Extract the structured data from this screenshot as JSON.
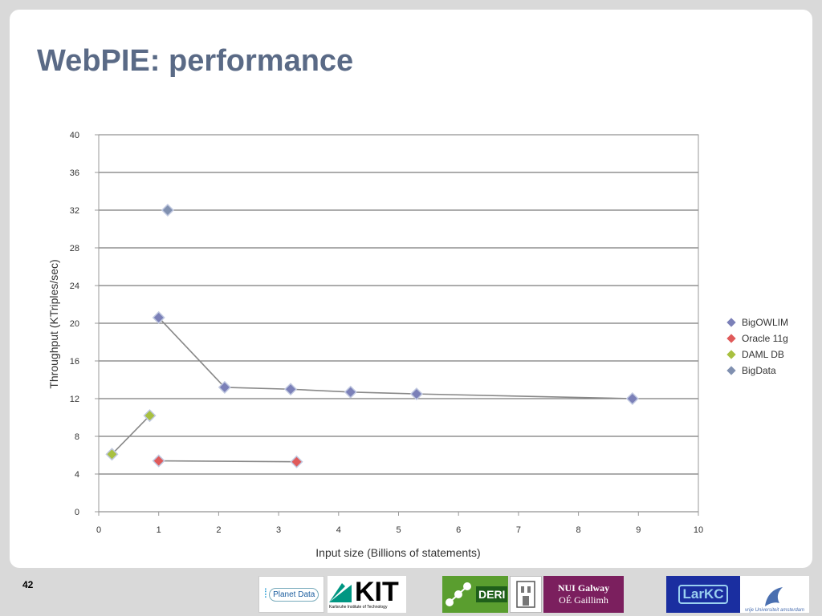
{
  "slide": {
    "title": "WebPIE: performance",
    "page_number": "42"
  },
  "chart_data": {
    "type": "scatter",
    "title": "",
    "xlabel": "Input size (Billions of statements)",
    "ylabel": "Throughput (KTriples/sec)",
    "xlim": [
      0,
      10
    ],
    "ylim": [
      0,
      40
    ],
    "xticks": [
      "0",
      "1",
      "2",
      "3",
      "4",
      "5",
      "6",
      "7",
      "8",
      "9",
      "10"
    ],
    "yticks": [
      "0",
      "4",
      "8",
      "12",
      "16",
      "20",
      "24",
      "28",
      "32",
      "36",
      "40"
    ],
    "grid": "horizontal",
    "legend_position": "right",
    "series": [
      {
        "name": "BigOWLIM",
        "color": "#7b80b8",
        "connected": true,
        "x": [
          1.0,
          2.1,
          3.2,
          4.2,
          5.3,
          8.9
        ],
        "y": [
          20.6,
          13.2,
          13.0,
          12.7,
          12.5,
          12.0
        ]
      },
      {
        "name": "Oracle 11g",
        "color": "#e05a5a",
        "connected": true,
        "x": [
          1.0,
          3.3
        ],
        "y": [
          5.4,
          5.3
        ]
      },
      {
        "name": "DAML DB",
        "color": "#a8c040",
        "connected": true,
        "x": [
          0.22,
          0.85
        ],
        "y": [
          6.1,
          10.2
        ]
      },
      {
        "name": "BigData",
        "color": "#8090b0",
        "connected": false,
        "x": [
          1.15
        ],
        "y": [
          32.0
        ]
      }
    ]
  },
  "logos": {
    "planetdata": "Planet Data",
    "kit": "KIT",
    "kit_sub": "Karlsruhe Institute of Technology",
    "deri": "DERI",
    "nui_line1": "NUI Galway",
    "nui_line2": "OÉ Gaillimh",
    "larkc": "LarKC",
    "vu": "vrije Universiteit amsterdam"
  }
}
